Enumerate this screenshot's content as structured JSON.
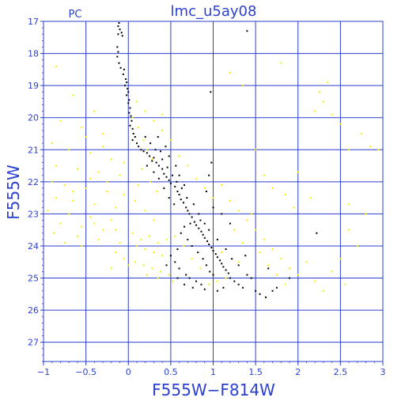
{
  "chart_data": {
    "type": "scatter",
    "title": "lmc_u5ay08",
    "corner_label": "PC",
    "xlabel": "F555W−F814W",
    "ylabel": "F555W",
    "xlim": [
      -1,
      3
    ],
    "ylim": [
      27.6,
      17
    ],
    "y_inverted": true,
    "grid": true,
    "x_ticks": [
      -1,
      -0.5,
      0,
      0.5,
      1,
      1.5,
      2,
      2.5,
      3
    ],
    "x_tick_labels": [
      "−1",
      "−0.5",
      "0",
      "0.5",
      "1",
      "1.5",
      "2",
      "2.5",
      "3"
    ],
    "y_ticks": [
      17,
      18,
      19,
      20,
      21,
      22,
      23,
      24,
      25,
      26,
      27
    ],
    "y_tick_labels": [
      "17",
      "18",
      "19",
      "20",
      "21",
      "22",
      "23",
      "24",
      "25",
      "26",
      "27"
    ],
    "colors": {
      "axes": "#2b3fd0",
      "grid": "#2b3fd0",
      "primary": "#000000",
      "secondary": "#f0f000"
    },
    "series": [
      {
        "color": "#000000",
        "points": [
          [
            -0.11,
            17.05
          ],
          [
            -0.12,
            17.15
          ],
          [
            -0.1,
            17.25
          ],
          [
            -0.08,
            17.35
          ],
          [
            -0.07,
            17.45
          ],
          [
            -0.12,
            17.4
          ],
          [
            -0.13,
            17.8
          ],
          [
            -0.12,
            17.95
          ],
          [
            -0.13,
            18.1
          ],
          [
            -0.11,
            18.3
          ],
          [
            -0.09,
            18.45
          ],
          [
            -0.05,
            18.5
          ],
          [
            -0.06,
            18.65
          ],
          [
            -0.03,
            18.8
          ],
          [
            -0.02,
            18.9
          ],
          [
            -0.04,
            19.0
          ],
          [
            -0.01,
            19.1
          ],
          [
            0.0,
            19.2
          ],
          [
            -0.02,
            19.3
          ],
          [
            0.01,
            19.45
          ],
          [
            0.0,
            19.55
          ],
          [
            0.02,
            19.7
          ],
          [
            0.01,
            19.85
          ],
          [
            0.03,
            19.95
          ],
          [
            0.04,
            20.1
          ],
          [
            0.02,
            20.25
          ],
          [
            0.05,
            20.35
          ],
          [
            0.06,
            20.5
          ],
          [
            0.08,
            20.6
          ],
          [
            0.05,
            20.7
          ],
          [
            0.1,
            20.8
          ],
          [
            0.12,
            20.9
          ],
          [
            0.15,
            21.0
          ],
          [
            0.18,
            21.05
          ],
          [
            0.22,
            21.1
          ],
          [
            0.25,
            21.2
          ],
          [
            0.3,
            21.25
          ],
          [
            0.28,
            21.35
          ],
          [
            0.33,
            21.4
          ],
          [
            0.36,
            21.5
          ],
          [
            0.4,
            21.6
          ],
          [
            0.38,
            21.05
          ],
          [
            0.42,
            21.75
          ],
          [
            0.45,
            21.85
          ],
          [
            0.48,
            21.95
          ],
          [
            0.5,
            22.05
          ],
          [
            0.55,
            22.15
          ],
          [
            0.58,
            22.3
          ],
          [
            0.6,
            22.4
          ],
          [
            0.62,
            22.55
          ],
          [
            0.65,
            22.65
          ],
          [
            0.68,
            22.8
          ],
          [
            0.7,
            22.9
          ],
          [
            0.72,
            23.0
          ],
          [
            0.75,
            23.1
          ],
          [
            0.78,
            23.25
          ],
          [
            0.8,
            23.35
          ],
          [
            0.83,
            23.45
          ],
          [
            0.86,
            23.55
          ],
          [
            0.88,
            23.65
          ],
          [
            0.9,
            23.75
          ],
          [
            0.93,
            23.85
          ],
          [
            0.95,
            23.95
          ],
          [
            0.98,
            24.05
          ],
          [
            1.0,
            24.15
          ],
          [
            1.03,
            24.25
          ],
          [
            1.05,
            24.35
          ],
          [
            1.08,
            24.45
          ],
          [
            1.1,
            24.55
          ],
          [
            1.12,
            24.65
          ],
          [
            1.15,
            24.75
          ],
          [
            1.18,
            24.85
          ],
          [
            0.62,
            23.6
          ],
          [
            0.7,
            23.8
          ],
          [
            0.75,
            24.0
          ],
          [
            0.82,
            24.2
          ],
          [
            0.88,
            24.4
          ],
          [
            0.92,
            24.6
          ],
          [
            0.96,
            24.8
          ],
          [
            1.0,
            24.9
          ],
          [
            0.55,
            24.5
          ],
          [
            0.6,
            24.7
          ],
          [
            0.68,
            24.9
          ],
          [
            0.72,
            25.0
          ],
          [
            0.8,
            25.1
          ],
          [
            0.86,
            25.2
          ],
          [
            1.2,
            25.0
          ],
          [
            1.25,
            25.1
          ],
          [
            1.3,
            25.2
          ],
          [
            1.35,
            25.3
          ],
          [
            1.4,
            24.9
          ],
          [
            1.45,
            25.0
          ],
          [
            1.5,
            25.4
          ],
          [
            1.55,
            25.5
          ],
          [
            1.62,
            25.6
          ],
          [
            1.7,
            25.4
          ],
          [
            0.45,
            24.6
          ],
          [
            0.5,
            24.3
          ],
          [
            0.58,
            24.1
          ],
          [
            0.66,
            23.4
          ],
          [
            0.73,
            23.3
          ],
          [
            0.85,
            23.2
          ],
          [
            0.95,
            23.5
          ],
          [
            1.05,
            23.8
          ],
          [
            1.15,
            24.1
          ],
          [
            1.22,
            24.4
          ],
          [
            1.3,
            24.6
          ],
          [
            1.38,
            24.3
          ],
          [
            0.2,
            20.6
          ],
          [
            0.26,
            20.8
          ],
          [
            0.32,
            21.0
          ],
          [
            0.4,
            21.3
          ],
          [
            0.46,
            21.55
          ],
          [
            0.52,
            21.8
          ],
          [
            0.57,
            22.0
          ],
          [
            0.63,
            22.2
          ],
          [
            0.69,
            22.5
          ],
          [
            0.77,
            22.7
          ],
          [
            0.83,
            23.0
          ],
          [
            0.9,
            23.3
          ],
          [
            0.35,
            20.6
          ],
          [
            0.44,
            20.9
          ],
          [
            0.48,
            21.2
          ],
          [
            0.56,
            21.5
          ],
          [
            0.6,
            21.8
          ],
          [
            0.66,
            22.1
          ],
          [
            0.22,
            21.5
          ],
          [
            0.3,
            21.7
          ],
          [
            0.36,
            21.9
          ],
          [
            0.42,
            22.2
          ],
          [
            0.48,
            22.5
          ],
          [
            0.54,
            22.7
          ],
          [
            0.98,
            21.4
          ],
          [
            0.95,
            21.8
          ],
          [
            0.92,
            22.3
          ],
          [
            1.0,
            22.8
          ],
          [
            1.1,
            23.0
          ],
          [
            1.2,
            23.3
          ],
          [
            0.97,
            19.2
          ],
          [
            1.4,
            17.3
          ],
          [
            2.22,
            23.6
          ],
          [
            1.9,
            25.0
          ],
          [
            1.75,
            25.3
          ],
          [
            1.65,
            24.7
          ],
          [
            1.05,
            25.4
          ],
          [
            1.12,
            25.3
          ],
          [
            0.9,
            25.35
          ],
          [
            0.76,
            25.3
          ],
          [
            0.66,
            25.2
          ],
          [
            0.58,
            25.0
          ]
        ]
      },
      {
        "color": "#f0f000",
        "points": [
          [
            -0.85,
            18.4
          ],
          [
            -0.65,
            19.3
          ],
          [
            -0.4,
            19.8
          ],
          [
            -0.8,
            20.1
          ],
          [
            -0.55,
            20.3
          ],
          [
            -0.3,
            20.5
          ],
          [
            -0.9,
            20.8
          ],
          [
            -0.7,
            21.0
          ],
          [
            -0.45,
            21.1
          ],
          [
            -0.2,
            21.3
          ],
          [
            -0.85,
            21.5
          ],
          [
            -0.6,
            21.6
          ],
          [
            -0.35,
            21.7
          ],
          [
            -0.1,
            21.8
          ],
          [
            -0.9,
            22.0
          ],
          [
            -0.75,
            22.1
          ],
          [
            -0.5,
            22.2
          ],
          [
            -0.25,
            22.3
          ],
          [
            -0.05,
            22.4
          ],
          [
            -0.85,
            22.5
          ],
          [
            -0.65,
            22.6
          ],
          [
            -0.4,
            22.7
          ],
          [
            -0.15,
            22.8
          ],
          [
            -0.95,
            22.9
          ],
          [
            -0.7,
            23.0
          ],
          [
            -0.45,
            23.1
          ],
          [
            -0.2,
            23.2
          ],
          [
            -0.8,
            23.3
          ],
          [
            -0.55,
            23.4
          ],
          [
            -0.3,
            23.5
          ],
          [
            -0.88,
            23.6
          ],
          [
            -0.6,
            23.7
          ],
          [
            -0.35,
            23.8
          ],
          [
            -0.1,
            23.9
          ],
          [
            0.05,
            23.6
          ],
          [
            0.15,
            23.8
          ],
          [
            0.25,
            23.7
          ],
          [
            0.35,
            23.9
          ],
          [
            0.45,
            23.8
          ],
          [
            0.1,
            24.0
          ],
          [
            0.2,
            24.1
          ],
          [
            0.3,
            24.2
          ],
          [
            0.4,
            24.3
          ],
          [
            -0.15,
            24.2
          ],
          [
            -0.05,
            24.4
          ],
          [
            0.08,
            24.5
          ],
          [
            0.18,
            24.6
          ],
          [
            0.28,
            24.7
          ],
          [
            0.38,
            24.8
          ],
          [
            0.48,
            24.9
          ],
          [
            0.05,
            20.0
          ],
          [
            0.12,
            20.3
          ],
          [
            0.18,
            20.7
          ],
          [
            0.22,
            21.0
          ],
          [
            0.28,
            21.3
          ],
          [
            0.16,
            21.6
          ],
          [
            0.26,
            22.0
          ],
          [
            0.34,
            22.3
          ],
          [
            0.12,
            22.1
          ],
          [
            0.08,
            22.6
          ],
          [
            0.2,
            22.9
          ],
          [
            0.3,
            23.2
          ],
          [
            0.1,
            19.5
          ],
          [
            0.2,
            19.8
          ],
          [
            0.3,
            20.1
          ],
          [
            0.4,
            20.4
          ],
          [
            0.5,
            20.7
          ],
          [
            0.4,
            19.9
          ],
          [
            0.6,
            21.2
          ],
          [
            0.7,
            21.5
          ],
          [
            0.8,
            21.9
          ],
          [
            0.9,
            22.2
          ],
          [
            1.0,
            22.5
          ],
          [
            1.1,
            22.1
          ],
          [
            1.2,
            22.6
          ],
          [
            1.3,
            22.9
          ],
          [
            1.4,
            23.2
          ],
          [
            1.5,
            23.5
          ],
          [
            1.6,
            23.8
          ],
          [
            1.7,
            24.1
          ],
          [
            1.8,
            24.4
          ],
          [
            1.9,
            24.7
          ],
          [
            2.0,
            24.9
          ],
          [
            2.1,
            24.5
          ],
          [
            1.55,
            24.2
          ],
          [
            1.65,
            24.6
          ],
          [
            1.75,
            24.9
          ],
          [
            1.85,
            25.2
          ],
          [
            2.2,
            25.1
          ],
          [
            2.4,
            24.8
          ],
          [
            2.55,
            25.2
          ],
          [
            2.3,
            25.4
          ],
          [
            2.5,
            24.4
          ],
          [
            2.7,
            24.0
          ],
          [
            2.8,
            23.0
          ],
          [
            2.6,
            22.7
          ],
          [
            2.2,
            19.8
          ],
          [
            2.3,
            19.5
          ],
          [
            2.4,
            19.9
          ],
          [
            2.25,
            19.2
          ],
          [
            2.35,
            18.9
          ],
          [
            2.5,
            20.2
          ],
          [
            2.75,
            20.5
          ],
          [
            2.85,
            20.9
          ],
          [
            2.95,
            21.0
          ],
          [
            2.6,
            21.0
          ],
          [
            1.8,
            18.3
          ],
          [
            1.2,
            18.6
          ],
          [
            1.35,
            19.0
          ],
          [
            1.5,
            21.0
          ],
          [
            1.6,
            21.8
          ],
          [
            1.7,
            22.2
          ],
          [
            1.85,
            22.4
          ],
          [
            1.95,
            22.8
          ],
          [
            1.45,
            23.0
          ],
          [
            1.25,
            23.5
          ],
          [
            1.35,
            23.9
          ],
          [
            1.1,
            24.2
          ],
          [
            1.3,
            24.5
          ],
          [
            1.15,
            25.0
          ],
          [
            0.75,
            24.4
          ],
          [
            0.65,
            24.0
          ],
          [
            0.55,
            23.7
          ],
          [
            0.85,
            24.7
          ],
          [
            0.95,
            25.2
          ],
          [
            1.05,
            25.1
          ],
          [
            -0.45,
            21.9
          ],
          [
            -0.65,
            22.3
          ],
          [
            -0.25,
            22.0
          ],
          [
            -0.05,
            21.4
          ],
          [
            -0.3,
            20.9
          ],
          [
            -0.5,
            20.6
          ],
          [
            -0.75,
            23.9
          ],
          [
            -0.55,
            24.0
          ],
          [
            -0.4,
            23.3
          ],
          [
            -0.15,
            23.5
          ],
          [
            0.0,
            24.6
          ],
          [
            0.22,
            24.9
          ],
          [
            0.35,
            25.0
          ],
          [
            0.52,
            25.1
          ],
          [
            -0.2,
            24.7
          ],
          [
            2.0,
            21.7
          ],
          [
            2.15,
            22.5
          ],
          [
            2.6,
            23.5
          ]
        ]
      }
    ]
  }
}
